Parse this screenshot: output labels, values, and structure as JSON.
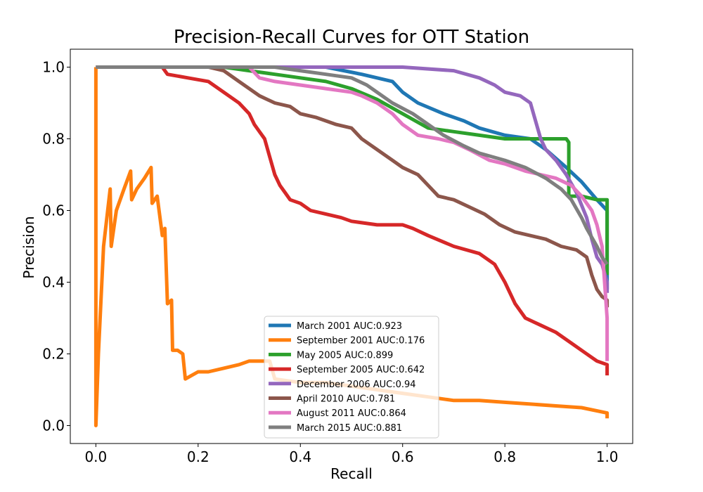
{
  "chart_data": {
    "type": "line",
    "title": "Precision-Recall Curves for OTT Station",
    "xlabel": "Recall",
    "ylabel": "Precision",
    "xlim": [
      -0.05,
      1.05
    ],
    "ylim": [
      -0.05,
      1.05
    ],
    "xticks": [
      0.0,
      0.2,
      0.4,
      0.6,
      0.8,
      1.0
    ],
    "xtick_labels": [
      "0.0",
      "0.2",
      "0.4",
      "0.6",
      "0.8",
      "1.0"
    ],
    "yticks": [
      0.0,
      0.2,
      0.4,
      0.6,
      0.8,
      1.0
    ],
    "ytick_labels": [
      "0.0",
      "0.2",
      "0.4",
      "0.6",
      "0.8",
      "1.0"
    ],
    "grid": false,
    "legend_position": "lower-center",
    "series": [
      {
        "name": "March 2001 AUC:0.923",
        "color": "#1f77b4",
        "points": [
          [
            0,
            1.0
          ],
          [
            0.3,
            1.0
          ],
          [
            0.45,
            1.0
          ],
          [
            0.52,
            0.98
          ],
          [
            0.58,
            0.96
          ],
          [
            0.6,
            0.93
          ],
          [
            0.63,
            0.9
          ],
          [
            0.68,
            0.87
          ],
          [
            0.72,
            0.85
          ],
          [
            0.75,
            0.83
          ],
          [
            0.8,
            0.81
          ],
          [
            0.85,
            0.8
          ],
          [
            0.88,
            0.77
          ],
          [
            0.92,
            0.72
          ],
          [
            0.95,
            0.68
          ],
          [
            0.98,
            0.63
          ],
          [
            1.0,
            0.6
          ],
          [
            1.0,
            0.38
          ]
        ]
      },
      {
        "name": "September 2001 AUC:0.176",
        "color": "#ff7f0e",
        "points": [
          [
            0,
            1.0
          ],
          [
            0,
            0.0
          ],
          [
            0.005,
            0.2
          ],
          [
            0.015,
            0.5
          ],
          [
            0.028,
            0.66
          ],
          [
            0.03,
            0.5
          ],
          [
            0.04,
            0.6
          ],
          [
            0.055,
            0.66
          ],
          [
            0.068,
            0.71
          ],
          [
            0.07,
            0.63
          ],
          [
            0.08,
            0.66
          ],
          [
            0.095,
            0.69
          ],
          [
            0.108,
            0.72
          ],
          [
            0.11,
            0.62
          ],
          [
            0.12,
            0.64
          ],
          [
            0.13,
            0.53
          ],
          [
            0.135,
            0.55
          ],
          [
            0.14,
            0.34
          ],
          [
            0.148,
            0.35
          ],
          [
            0.15,
            0.21
          ],
          [
            0.16,
            0.21
          ],
          [
            0.17,
            0.2
          ],
          [
            0.175,
            0.13
          ],
          [
            0.2,
            0.15
          ],
          [
            0.22,
            0.15
          ],
          [
            0.25,
            0.16
          ],
          [
            0.28,
            0.17
          ],
          [
            0.3,
            0.18
          ],
          [
            0.32,
            0.18
          ],
          [
            0.34,
            0.18
          ],
          [
            0.35,
            0.13
          ],
          [
            0.4,
            0.12
          ],
          [
            0.45,
            0.12
          ],
          [
            0.5,
            0.11
          ],
          [
            0.55,
            0.1
          ],
          [
            0.6,
            0.09
          ],
          [
            0.65,
            0.08
          ],
          [
            0.7,
            0.07
          ],
          [
            0.75,
            0.07
          ],
          [
            0.8,
            0.065
          ],
          [
            0.85,
            0.06
          ],
          [
            0.9,
            0.055
          ],
          [
            0.95,
            0.05
          ],
          [
            1.0,
            0.035
          ],
          [
            1.0,
            0.02
          ]
        ]
      },
      {
        "name": "May 2005 AUC:0.899",
        "color": "#2ca02c",
        "points": [
          [
            0,
            1.0
          ],
          [
            0.25,
            1.0
          ],
          [
            0.3,
            0.99
          ],
          [
            0.35,
            0.98
          ],
          [
            0.4,
            0.97
          ],
          [
            0.45,
            0.96
          ],
          [
            0.5,
            0.94
          ],
          [
            0.55,
            0.91
          ],
          [
            0.6,
            0.87
          ],
          [
            0.65,
            0.83
          ],
          [
            0.7,
            0.82
          ],
          [
            0.75,
            0.81
          ],
          [
            0.8,
            0.8
          ],
          [
            0.85,
            0.8
          ],
          [
            0.9,
            0.8
          ],
          [
            0.92,
            0.8
          ],
          [
            0.925,
            0.79
          ],
          [
            0.925,
            0.64
          ],
          [
            0.95,
            0.64
          ],
          [
            0.98,
            0.63
          ],
          [
            1.0,
            0.63
          ],
          [
            1.0,
            0.42
          ]
        ]
      },
      {
        "name": "September 2005 AUC:0.642",
        "color": "#d62728",
        "points": [
          [
            0.13,
            1.0
          ],
          [
            0.14,
            0.98
          ],
          [
            0.18,
            0.97
          ],
          [
            0.22,
            0.96
          ],
          [
            0.25,
            0.93
          ],
          [
            0.28,
            0.9
          ],
          [
            0.3,
            0.87
          ],
          [
            0.31,
            0.84
          ],
          [
            0.32,
            0.82
          ],
          [
            0.33,
            0.8
          ],
          [
            0.34,
            0.75
          ],
          [
            0.35,
            0.7
          ],
          [
            0.36,
            0.67
          ],
          [
            0.37,
            0.65
          ],
          [
            0.38,
            0.63
          ],
          [
            0.4,
            0.62
          ],
          [
            0.42,
            0.6
          ],
          [
            0.45,
            0.59
          ],
          [
            0.48,
            0.58
          ],
          [
            0.5,
            0.57
          ],
          [
            0.55,
            0.56
          ],
          [
            0.6,
            0.56
          ],
          [
            0.62,
            0.55
          ],
          [
            0.65,
            0.53
          ],
          [
            0.7,
            0.5
          ],
          [
            0.75,
            0.48
          ],
          [
            0.78,
            0.45
          ],
          [
            0.8,
            0.4
          ],
          [
            0.82,
            0.34
          ],
          [
            0.84,
            0.3
          ],
          [
            0.87,
            0.28
          ],
          [
            0.9,
            0.26
          ],
          [
            0.93,
            0.23
          ],
          [
            0.96,
            0.2
          ],
          [
            0.98,
            0.18
          ],
          [
            1.0,
            0.17
          ],
          [
            1.0,
            0.14
          ]
        ]
      },
      {
        "name": "December 2006 AUC:0.94",
        "color": "#9467bd",
        "points": [
          [
            0,
            1.0
          ],
          [
            0.4,
            1.0
          ],
          [
            0.6,
            1.0
          ],
          [
            0.7,
            0.99
          ],
          [
            0.75,
            0.97
          ],
          [
            0.78,
            0.95
          ],
          [
            0.8,
            0.93
          ],
          [
            0.83,
            0.92
          ],
          [
            0.85,
            0.9
          ],
          [
            0.86,
            0.85
          ],
          [
            0.87,
            0.8
          ],
          [
            0.88,
            0.77
          ],
          [
            0.9,
            0.74
          ],
          [
            0.92,
            0.7
          ],
          [
            0.94,
            0.65
          ],
          [
            0.96,
            0.58
          ],
          [
            0.97,
            0.52
          ],
          [
            0.98,
            0.47
          ],
          [
            0.99,
            0.45
          ],
          [
            1.0,
            0.4
          ],
          [
            1.0,
            0.37
          ]
        ]
      },
      {
        "name": "April 2010 AUC:0.781",
        "color": "#8c564b",
        "points": [
          [
            0,
            1.0
          ],
          [
            0.22,
            1.0
          ],
          [
            0.25,
            0.99
          ],
          [
            0.28,
            0.96
          ],
          [
            0.3,
            0.94
          ],
          [
            0.32,
            0.92
          ],
          [
            0.35,
            0.9
          ],
          [
            0.38,
            0.89
          ],
          [
            0.4,
            0.87
          ],
          [
            0.43,
            0.86
          ],
          [
            0.47,
            0.84
          ],
          [
            0.5,
            0.83
          ],
          [
            0.52,
            0.8
          ],
          [
            0.55,
            0.77
          ],
          [
            0.58,
            0.74
          ],
          [
            0.6,
            0.72
          ],
          [
            0.63,
            0.7
          ],
          [
            0.65,
            0.67
          ],
          [
            0.67,
            0.64
          ],
          [
            0.7,
            0.63
          ],
          [
            0.73,
            0.61
          ],
          [
            0.76,
            0.59
          ],
          [
            0.79,
            0.56
          ],
          [
            0.82,
            0.54
          ],
          [
            0.85,
            0.53
          ],
          [
            0.88,
            0.52
          ],
          [
            0.91,
            0.5
          ],
          [
            0.94,
            0.49
          ],
          [
            0.96,
            0.47
          ],
          [
            0.97,
            0.42
          ],
          [
            0.98,
            0.38
          ],
          [
            0.99,
            0.36
          ],
          [
            1.0,
            0.35
          ],
          [
            1.0,
            0.33
          ]
        ]
      },
      {
        "name": "August 2011 AUC:0.864",
        "color": "#e377c2",
        "points": [
          [
            0,
            1.0
          ],
          [
            0.3,
            1.0
          ],
          [
            0.32,
            0.97
          ],
          [
            0.35,
            0.96
          ],
          [
            0.4,
            0.95
          ],
          [
            0.45,
            0.94
          ],
          [
            0.5,
            0.93
          ],
          [
            0.52,
            0.92
          ],
          [
            0.55,
            0.9
          ],
          [
            0.58,
            0.87
          ],
          [
            0.6,
            0.84
          ],
          [
            0.63,
            0.81
          ],
          [
            0.67,
            0.8
          ],
          [
            0.7,
            0.79
          ],
          [
            0.73,
            0.77
          ],
          [
            0.77,
            0.74
          ],
          [
            0.8,
            0.73
          ],
          [
            0.84,
            0.71
          ],
          [
            0.87,
            0.7
          ],
          [
            0.9,
            0.69
          ],
          [
            0.93,
            0.67
          ],
          [
            0.95,
            0.64
          ],
          [
            0.97,
            0.6
          ],
          [
            0.98,
            0.56
          ],
          [
            0.99,
            0.5
          ],
          [
            0.995,
            0.4
          ],
          [
            1.0,
            0.3
          ],
          [
            1.0,
            0.18
          ]
        ]
      },
      {
        "name": "March 2015 AUC:0.881",
        "color": "#7f7f7f",
        "points": [
          [
            0,
            1.0
          ],
          [
            0.35,
            1.0
          ],
          [
            0.4,
            0.99
          ],
          [
            0.45,
            0.98
          ],
          [
            0.5,
            0.97
          ],
          [
            0.53,
            0.95
          ],
          [
            0.56,
            0.92
          ],
          [
            0.58,
            0.9
          ],
          [
            0.62,
            0.87
          ],
          [
            0.65,
            0.84
          ],
          [
            0.68,
            0.81
          ],
          [
            0.72,
            0.78
          ],
          [
            0.75,
            0.76
          ],
          [
            0.8,
            0.74
          ],
          [
            0.84,
            0.72
          ],
          [
            0.88,
            0.69
          ],
          [
            0.91,
            0.66
          ],
          [
            0.93,
            0.63
          ],
          [
            0.95,
            0.58
          ],
          [
            0.96,
            0.55
          ],
          [
            0.98,
            0.5
          ],
          [
            0.99,
            0.47
          ],
          [
            1.0,
            0.45
          ]
        ]
      }
    ]
  }
}
